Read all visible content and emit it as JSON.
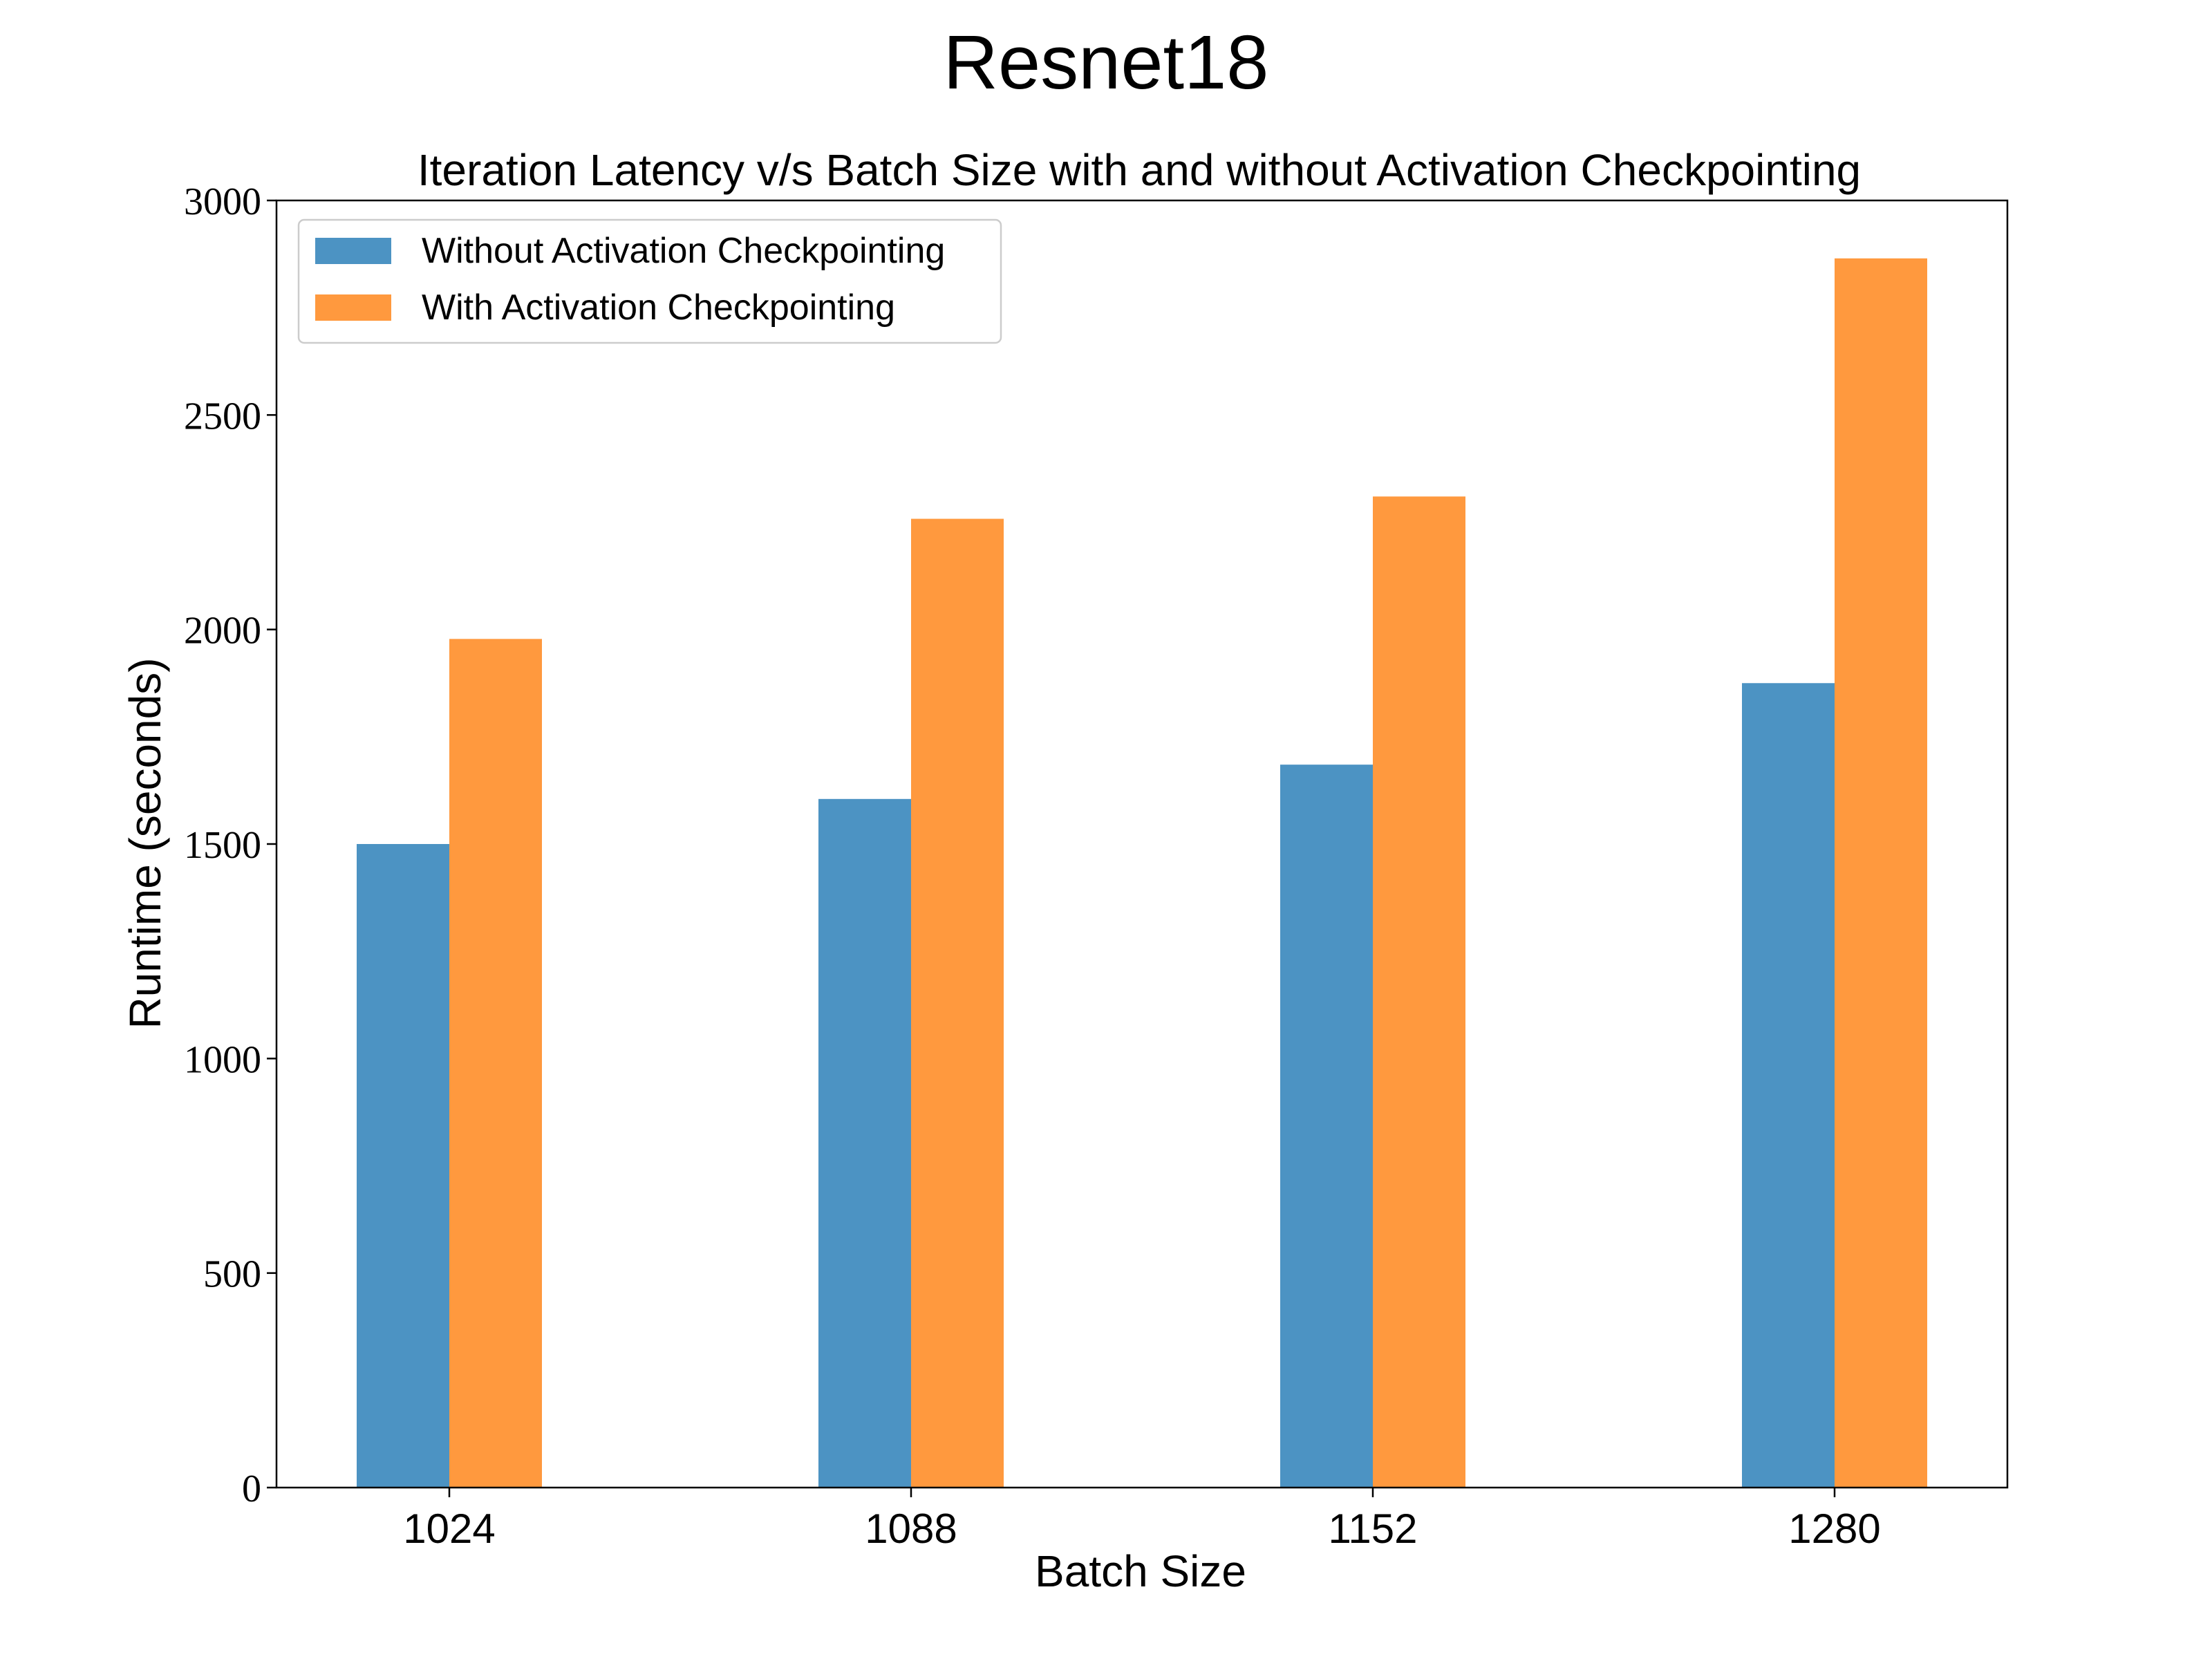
{
  "figure_title": "Resnet18",
  "chart_data": {
    "type": "bar",
    "title": "Iteration Latency v/s Batch Size with and without Activation Checkpointing",
    "xlabel": "Batch Size",
    "ylabel": "Runtime (seconds)",
    "categories": [
      "1024",
      "1088",
      "1152",
      "1280"
    ],
    "series": [
      {
        "name": "Without Activation Checkpointing",
        "color": "#4c93c3",
        "values": [
          1500,
          1605,
          1685,
          1875
        ]
      },
      {
        "name": "With Activation Checkpointing",
        "color": "#ff993e",
        "values": [
          1978,
          2258,
          2310,
          2865
        ]
      }
    ],
    "ylim": [
      0,
      3000
    ],
    "yticks": [
      0,
      500,
      1000,
      1500,
      2000,
      2500,
      3000
    ],
    "grid": false,
    "legend_position": "top-left"
  }
}
